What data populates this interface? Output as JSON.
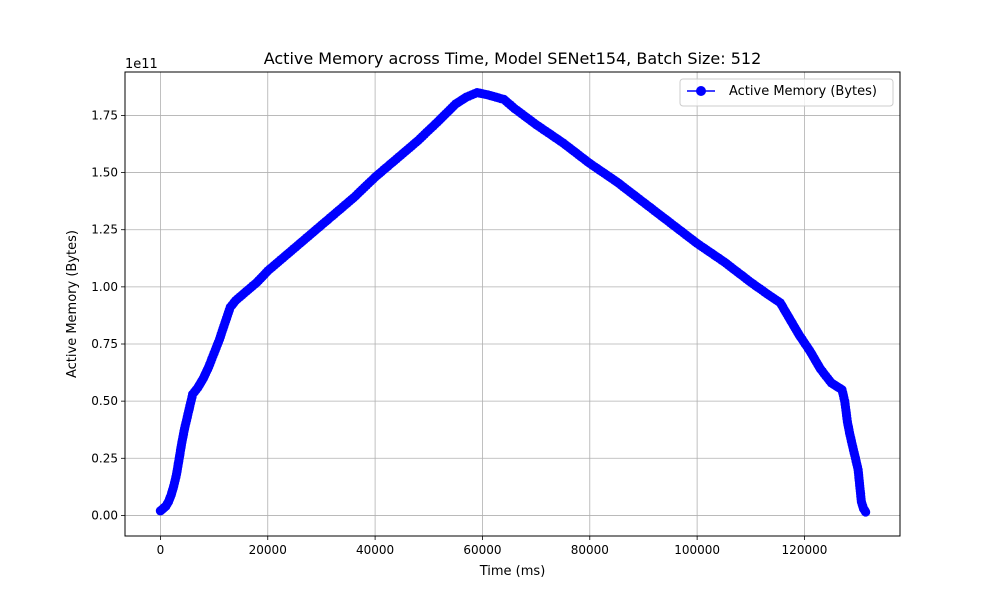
{
  "chart_data": {
    "type": "line",
    "title": "Active Memory across Time, Model SENet154, Batch Size: 512",
    "xlabel": "Time (ms)",
    "ylabel": "Active Memory (Bytes)",
    "y_offset_label": "1e11",
    "xlim": [
      -6600,
      137800
    ],
    "ylim": [
      -0.09,
      1.94
    ],
    "y_scale": 100000000000.0,
    "x_ticks": [
      0,
      20000,
      40000,
      60000,
      80000,
      100000,
      120000
    ],
    "x_tick_labels": [
      "0",
      "20000",
      "40000",
      "60000",
      "80000",
      "100000",
      "120000"
    ],
    "y_ticks": [
      0.0,
      0.25,
      0.5,
      0.75,
      1.0,
      1.25,
      1.5,
      1.75
    ],
    "y_tick_labels": [
      "0.00",
      "0.25",
      "0.50",
      "0.75",
      "1.00",
      "1.25",
      "1.50",
      "1.75"
    ],
    "grid": true,
    "legend_position": "top-right",
    "series": [
      {
        "name": "Active Memory (Bytes)",
        "color": "#0000ff",
        "marker": "circle",
        "points": [
          [
            0,
            0.02
          ],
          [
            500,
            0.03
          ],
          [
            1000,
            0.04
          ],
          [
            1500,
            0.06
          ],
          [
            2000,
            0.09
          ],
          [
            2500,
            0.13
          ],
          [
            3000,
            0.18
          ],
          [
            3500,
            0.25
          ],
          [
            4000,
            0.32
          ],
          [
            4500,
            0.38
          ],
          [
            5000,
            0.43
          ],
          [
            5500,
            0.48
          ],
          [
            6000,
            0.53
          ],
          [
            7000,
            0.56
          ],
          [
            8000,
            0.6
          ],
          [
            9000,
            0.65
          ],
          [
            10000,
            0.71
          ],
          [
            11000,
            0.77
          ],
          [
            12000,
            0.84
          ],
          [
            13000,
            0.91
          ],
          [
            14000,
            0.94
          ],
          [
            16000,
            0.98
          ],
          [
            18000,
            1.02
          ],
          [
            20000,
            1.07
          ],
          [
            24000,
            1.15
          ],
          [
            28000,
            1.23
          ],
          [
            32000,
            1.31
          ],
          [
            36000,
            1.39
          ],
          [
            40000,
            1.48
          ],
          [
            44000,
            1.56
          ],
          [
            48000,
            1.64
          ],
          [
            52000,
            1.73
          ],
          [
            55000,
            1.8
          ],
          [
            57000,
            1.83
          ],
          [
            59000,
            1.85
          ],
          [
            61000,
            1.84
          ],
          [
            64000,
            1.82
          ],
          [
            66000,
            1.78
          ],
          [
            70000,
            1.71
          ],
          [
            75000,
            1.63
          ],
          [
            80000,
            1.54
          ],
          [
            85000,
            1.46
          ],
          [
            90000,
            1.37
          ],
          [
            95000,
            1.28
          ],
          [
            100000,
            1.19
          ],
          [
            105000,
            1.11
          ],
          [
            110000,
            1.02
          ],
          [
            113000,
            0.97
          ],
          [
            115500,
            0.93
          ],
          [
            117000,
            0.87
          ],
          [
            119000,
            0.79
          ],
          [
            121000,
            0.72
          ],
          [
            123000,
            0.64
          ],
          [
            125000,
            0.58
          ],
          [
            127000,
            0.55
          ],
          [
            127500,
            0.5
          ],
          [
            128000,
            0.41
          ],
          [
            128500,
            0.35
          ],
          [
            129000,
            0.3
          ],
          [
            129500,
            0.25
          ],
          [
            130000,
            0.2
          ],
          [
            130300,
            0.13
          ],
          [
            130600,
            0.06
          ],
          [
            131000,
            0.03
          ],
          [
            131400,
            0.015
          ]
        ]
      }
    ]
  }
}
